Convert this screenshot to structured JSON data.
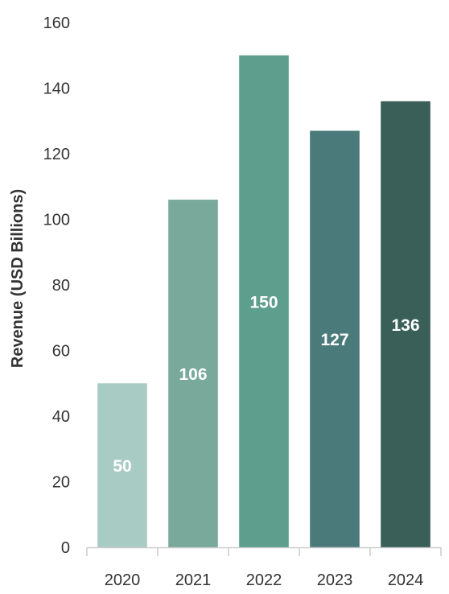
{
  "chart_data": {
    "type": "bar",
    "title": "",
    "xlabel": "",
    "ylabel": "Revenue (USD Billions)",
    "categories": [
      "2020",
      "2021",
      "2022",
      "2023",
      "2024"
    ],
    "values": [
      50,
      106,
      150,
      127,
      136
    ],
    "data_labels": [
      "50",
      "106",
      "150",
      "127",
      "136"
    ],
    "ylim": [
      0,
      160
    ],
    "yticks": [
      0,
      20,
      40,
      60,
      80,
      100,
      120,
      140,
      160
    ],
    "ytick_labels": [
      "0",
      "20",
      "40",
      "60",
      "80",
      "100",
      "120",
      "140",
      "160"
    ],
    "grid": false,
    "legend": "none",
    "bar_colors": [
      "#a8ccc4",
      "#79a99b",
      "#5e9e8d",
      "#4a7b7a",
      "#3a5f58"
    ],
    "label_color": "#ffffff",
    "axis_color": "#cccccc",
    "text_color": "#333333"
  }
}
